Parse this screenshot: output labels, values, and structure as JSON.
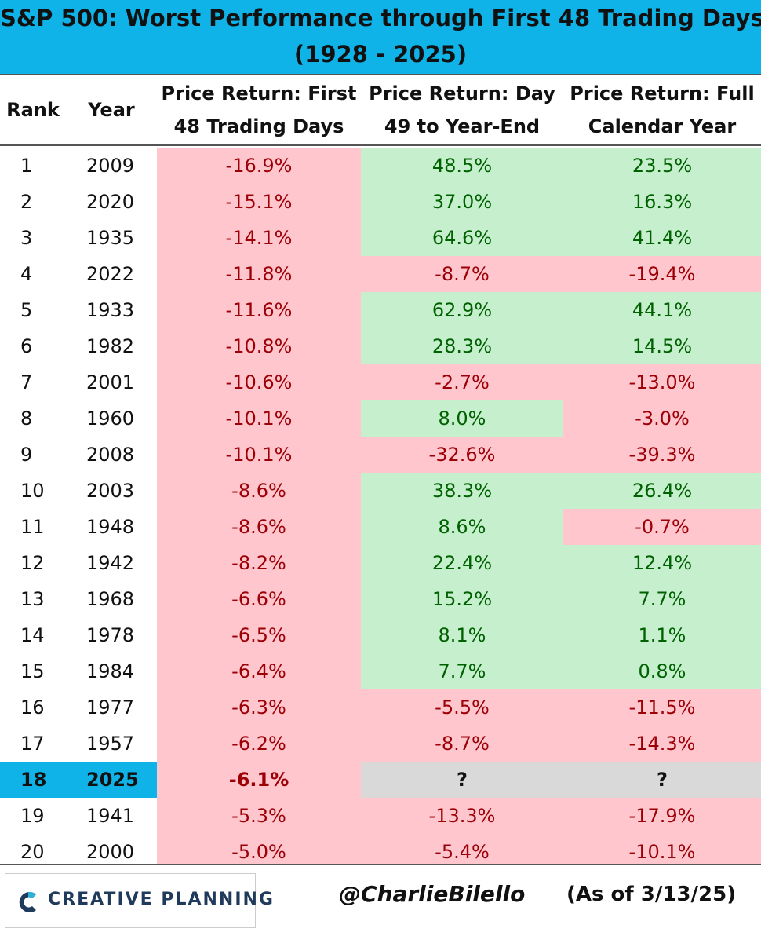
{
  "chart_data": {
    "type": "table",
    "title": "S&P 500: Worst Performance through First 48 Trading Days",
    "subtitle": "(1928 - 2025)",
    "columns": [
      {
        "key": "rank",
        "label_1": "Rank",
        "label_2": ""
      },
      {
        "key": "year",
        "label_1": "Year",
        "label_2": ""
      },
      {
        "key": "first48",
        "label_1": "Price Return: First",
        "label_2": "48 Trading Days"
      },
      {
        "key": "rest",
        "label_1": "Price Return: Day",
        "label_2": "49 to Year-End"
      },
      {
        "key": "full",
        "label_1": "Price Return: Full",
        "label_2": "Calendar  Year"
      }
    ],
    "rows": [
      {
        "rank": "1",
        "year": "2009",
        "first48": "-16.9%",
        "rest": "48.5%",
        "full": "23.5%"
      },
      {
        "rank": "2",
        "year": "2020",
        "first48": "-15.1%",
        "rest": "37.0%",
        "full": "16.3%"
      },
      {
        "rank": "3",
        "year": "1935",
        "first48": "-14.1%",
        "rest": "64.6%",
        "full": "41.4%"
      },
      {
        "rank": "4",
        "year": "2022",
        "first48": "-11.8%",
        "rest": "-8.7%",
        "full": "-19.4%"
      },
      {
        "rank": "5",
        "year": "1933",
        "first48": "-11.6%",
        "rest": "62.9%",
        "full": "44.1%"
      },
      {
        "rank": "6",
        "year": "1982",
        "first48": "-10.8%",
        "rest": "28.3%",
        "full": "14.5%"
      },
      {
        "rank": "7",
        "year": "2001",
        "first48": "-10.6%",
        "rest": "-2.7%",
        "full": "-13.0%"
      },
      {
        "rank": "8",
        "year": "1960",
        "first48": "-10.1%",
        "rest": "8.0%",
        "full": "-3.0%"
      },
      {
        "rank": "9",
        "year": "2008",
        "first48": "-10.1%",
        "rest": "-32.6%",
        "full": "-39.3%"
      },
      {
        "rank": "10",
        "year": "2003",
        "first48": "-8.6%",
        "rest": "38.3%",
        "full": "26.4%"
      },
      {
        "rank": "11",
        "year": "1948",
        "first48": "-8.6%",
        "rest": "8.6%",
        "full": "-0.7%"
      },
      {
        "rank": "12",
        "year": "1942",
        "first48": "-8.2%",
        "rest": "22.4%",
        "full": "12.4%"
      },
      {
        "rank": "13",
        "year": "1968",
        "first48": "-6.6%",
        "rest": "15.2%",
        "full": "7.7%"
      },
      {
        "rank": "14",
        "year": "1978",
        "first48": "-6.5%",
        "rest": "8.1%",
        "full": "1.1%"
      },
      {
        "rank": "15",
        "year": "1984",
        "first48": "-6.4%",
        "rest": "7.7%",
        "full": "0.8%"
      },
      {
        "rank": "16",
        "year": "1977",
        "first48": "-6.3%",
        "rest": "-5.5%",
        "full": "-11.5%"
      },
      {
        "rank": "17",
        "year": "1957",
        "first48": "-6.2%",
        "rest": "-8.7%",
        "full": "-14.3%"
      },
      {
        "rank": "18",
        "year": "2025",
        "first48": "-6.1%",
        "rest": "?",
        "full": "?",
        "highlight": true
      },
      {
        "rank": "19",
        "year": "1941",
        "first48": "-5.3%",
        "rest": "-13.3%",
        "full": "-17.9%"
      },
      {
        "rank": "20",
        "year": "2000",
        "first48": "-5.0%",
        "rest": "-5.4%",
        "full": "-10.1%"
      }
    ],
    "colors": {
      "title_bg": "#0fb3e8",
      "highlight_bg": "#0fb3e8",
      "negative_bg": "#ffc6cd",
      "negative_text": "#9c0006",
      "positive_bg": "#c6efce",
      "positive_text": "#006100",
      "unknown_bg": "#d9d9d9"
    }
  },
  "footer": {
    "logo_text": "CREATIVE PLANNING",
    "logo_icon": "creative-planning-logo-icon",
    "handle": "@CharlieBilello",
    "as_of": "(As of 3/13/25)"
  }
}
